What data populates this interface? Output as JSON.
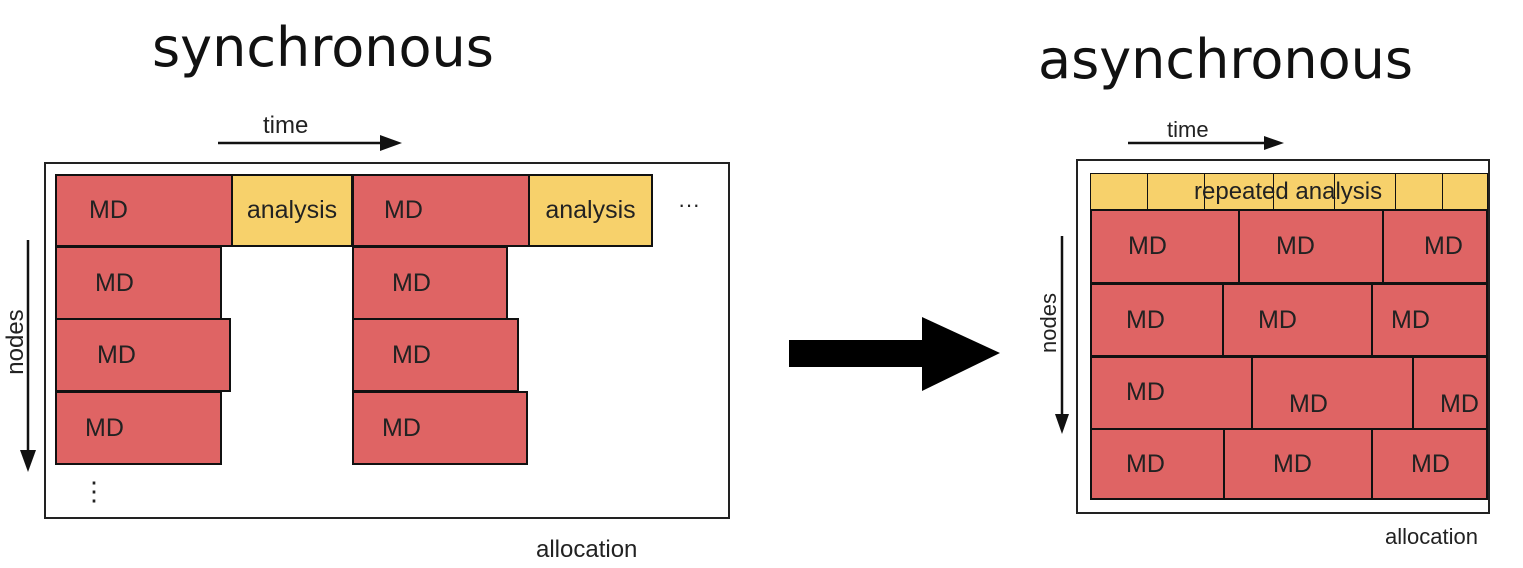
{
  "left": {
    "title": "synchronous",
    "time_label": "time",
    "nodes_label": "nodes",
    "allocation_label": "allocation",
    "md_label": "MD",
    "analysis_label": "analysis",
    "ellipsis_h": "···",
    "ellipsis_v": "⋮"
  },
  "right": {
    "title": "asynchronous",
    "time_label": "time",
    "nodes_label": "nodes",
    "allocation_label": "allocation",
    "md_label": "MD",
    "repeated_analysis_label": "repeated analysis"
  }
}
